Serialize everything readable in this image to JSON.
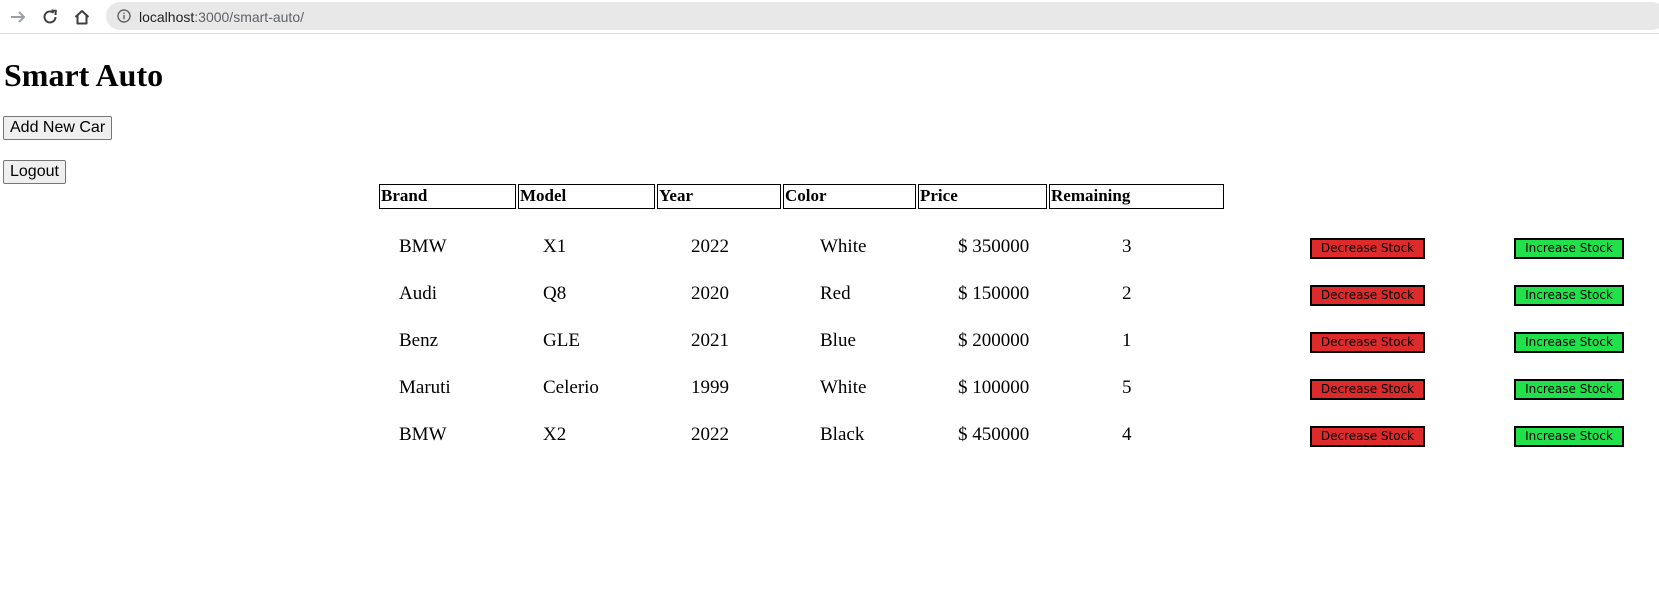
{
  "browser": {
    "url_host": "localhost",
    "url_path": ":3000/smart-auto/"
  },
  "page": {
    "title": "Smart Auto",
    "add_button_label": "Add New Car",
    "logout_button_label": "Logout"
  },
  "table": {
    "headers": [
      "Brand",
      "Model",
      "Year",
      "Color",
      "Price",
      "Remaining"
    ],
    "rows": [
      {
        "brand": "BMW",
        "model": "X1",
        "year": "2022",
        "color": "White",
        "price": "$ 350000",
        "remaining": "3"
      },
      {
        "brand": "Audi",
        "model": "Q8",
        "year": "2020",
        "color": "Red",
        "price": "$ 150000",
        "remaining": "2"
      },
      {
        "brand": "Benz",
        "model": "GLE",
        "year": "2021",
        "color": "Blue",
        "price": "$ 200000",
        "remaining": "1"
      },
      {
        "brand": "Maruti",
        "model": "Celerio",
        "year": "1999",
        "color": "White",
        "price": "$ 100000",
        "remaining": "5"
      },
      {
        "brand": "BMW",
        "model": "X2",
        "year": "2022",
        "color": "Black",
        "price": "$ 450000",
        "remaining": "4"
      }
    ],
    "decrease_label": "Decrease Stock",
    "increase_label": "Increase Stock"
  },
  "colors": {
    "decrease": "#dd2a2a",
    "increase": "#22e04a"
  },
  "icons": [
    "back-arrow-icon",
    "reload-icon",
    "home-icon",
    "info-icon"
  ]
}
